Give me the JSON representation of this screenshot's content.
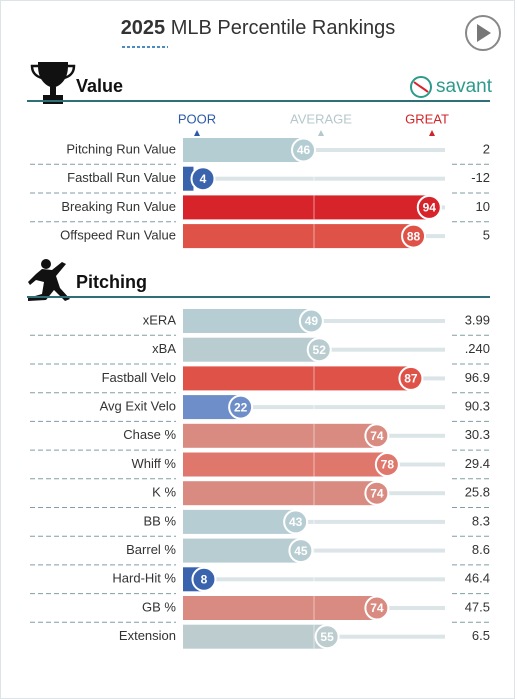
{
  "title_year": "2025",
  "title": "MLB Percentile Rankings",
  "logo": "savant",
  "scale": {
    "poor": "POOR",
    "average": "AVERAGE",
    "great": "GREAT"
  },
  "chart_data": [
    {
      "type": "percentile",
      "title": "Value",
      "xlim": [
        0,
        100
      ],
      "categories": [
        "Pitching Run Value",
        "Fastball Run Value",
        "Breaking Run Value",
        "Offspeed Run Value"
      ],
      "values": [
        46,
        4,
        94,
        88
      ],
      "stats": [
        "2",
        "-12",
        "10",
        "5"
      ],
      "colors": [
        "#b4cdd2",
        "#3a63ae",
        "#d7242b",
        "#df5248"
      ]
    },
    {
      "type": "percentile",
      "title": "Pitching",
      "xlim": [
        0,
        100
      ],
      "categories": [
        "xERA",
        "xBA",
        "Fastball Velo",
        "Avg Exit Velo",
        "Chase %",
        "Whiff %",
        "K %",
        "BB %",
        "Barrel %",
        "Hard-Hit %",
        "GB %",
        "Extension"
      ],
      "values": [
        49,
        52,
        87,
        22,
        74,
        78,
        74,
        43,
        45,
        8,
        74,
        55
      ],
      "stats": [
        "3.99",
        ".240",
        "96.9",
        "90.3",
        "30.3",
        "29.4",
        "25.8",
        "8.3",
        "8.6",
        "46.4",
        "47.5",
        "6.5"
      ],
      "colors": [
        "#b6ced3",
        "#b9cdd1",
        "#df5248",
        "#6d8ec8",
        "#d98b81",
        "#df776d",
        "#d98b81",
        "#b6ced3",
        "#b7cdd2",
        "#3a63ae",
        "#d98b81",
        "#bccccf"
      ]
    }
  ]
}
